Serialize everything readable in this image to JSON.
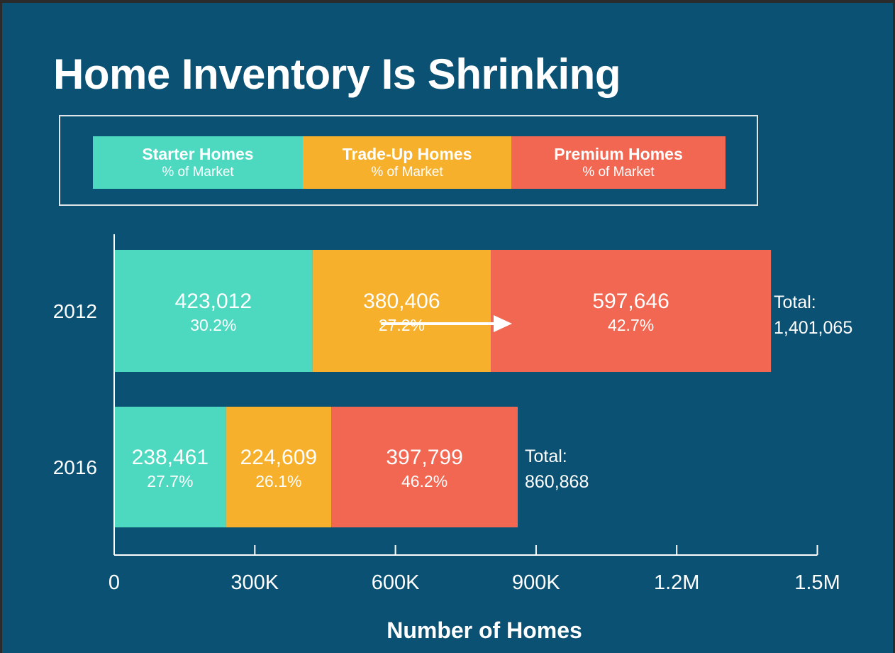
{
  "colors": {
    "background": "#0a5173",
    "starter": "#4cd9c0",
    "trade_up": "#f6b02b",
    "premium": "#f26752",
    "text": "#ffffff",
    "axis": "#ffffff"
  },
  "chart_data": {
    "type": "bar",
    "orientation": "horizontal",
    "stacked": true,
    "title": "Home Inventory Is Shrinking",
    "xlabel": "Number of Homes",
    "ylabel": "",
    "categories": [
      "2012",
      "2016"
    ],
    "xlim": [
      0,
      1500000
    ],
    "x_ticks": [
      0,
      300000,
      600000,
      900000,
      1200000,
      1500000
    ],
    "x_tick_labels": [
      "0",
      "300K",
      "600K",
      "900K",
      "1.2M",
      "1.5M"
    ],
    "grid": false,
    "legend_position": "top",
    "series": [
      {
        "name": "Starter Homes",
        "subtitle": "% of Market",
        "color": "#4cd9c0",
        "values": [
          423012,
          238461
        ],
        "value_labels": [
          "423,012",
          "238,461"
        ],
        "percent_labels": [
          "30.2%",
          "27.7%"
        ]
      },
      {
        "name": "Trade-Up Homes",
        "subtitle": "% of Market",
        "color": "#f6b02b",
        "values": [
          380406,
          224609
        ],
        "value_labels": [
          "380,406",
          "224,609"
        ],
        "percent_labels": [
          "27.2%",
          "26.1%"
        ]
      },
      {
        "name": "Premium Homes",
        "subtitle": "% of Market",
        "color": "#f26752",
        "values": [
          597646,
          397799
        ],
        "value_labels": [
          "597,646",
          "397,799"
        ],
        "percent_labels": [
          "42.7%",
          "46.2%"
        ]
      }
    ],
    "totals": [
      {
        "label": "Total:",
        "value": "1,401,065"
      },
      {
        "label": "Total:",
        "value": "860,868"
      }
    ],
    "annotations": [
      {
        "type": "arrow",
        "color": "#ffffff",
        "category": "2012",
        "from_value": 720000,
        "to_value": 1000000
      }
    ]
  }
}
